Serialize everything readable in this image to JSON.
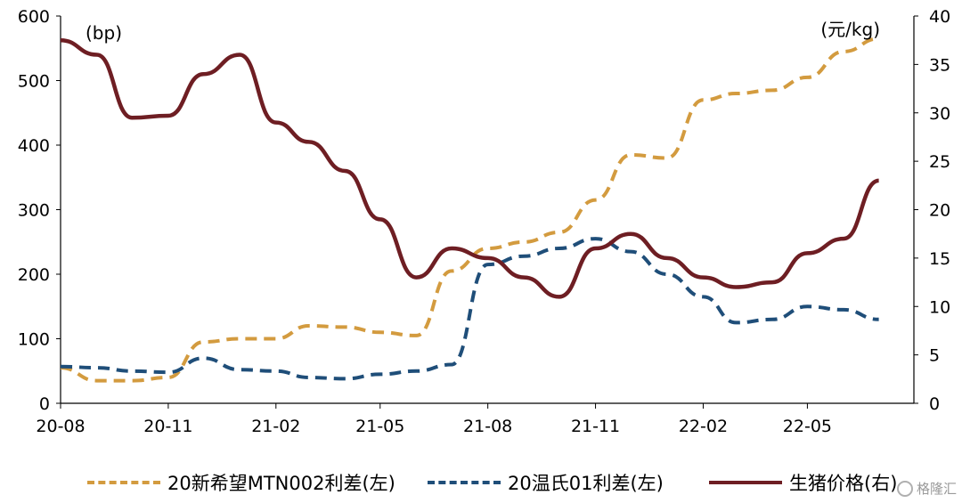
{
  "chart_data": {
    "type": "line",
    "y_left_unit": "(bp)",
    "y_right_unit": "(元/kg)",
    "ylim_left": [
      0,
      600
    ],
    "ylim_right": [
      0,
      40
    ],
    "yticks_left": [
      "0",
      "100",
      "200",
      "300",
      "400",
      "500",
      "600"
    ],
    "yticks_right": [
      "0",
      "5",
      "10",
      "15",
      "20",
      "25",
      "30",
      "35",
      "40"
    ],
    "xticks": [
      "20-08",
      "20-11",
      "21-02",
      "21-05",
      "21-08",
      "21-11",
      "22-02",
      "22-05"
    ],
    "x": [
      "2020-08",
      "2020-09",
      "2020-10",
      "2020-11",
      "2020-12",
      "2021-01",
      "2021-02",
      "2021-03",
      "2021-04",
      "2021-05",
      "2021-06",
      "2021-07",
      "2021-08",
      "2021-09",
      "2021-10",
      "2021-11",
      "2021-12",
      "2022-01",
      "2022-02",
      "2022-03",
      "2022-04",
      "2022-05",
      "2022-06",
      "2022-07"
    ],
    "grid": false,
    "legend_position": "bottom",
    "series": [
      {
        "name": "20新希望MTN002利差(左)",
        "axis": "left",
        "color": "#D39B3F",
        "style": "dashed",
        "values": [
          55,
          35,
          35,
          40,
          95,
          100,
          100,
          120,
          118,
          110,
          105,
          205,
          240,
          250,
          265,
          315,
          385,
          380,
          470,
          480,
          485,
          505,
          545,
          565
        ]
      },
      {
        "name": "20温氏01利差(左)",
        "axis": "left",
        "color": "#1F4E79",
        "style": "dashed",
        "values": [
          57,
          55,
          50,
          48,
          70,
          52,
          50,
          40,
          38,
          45,
          50,
          60,
          215,
          228,
          240,
          255,
          235,
          200,
          165,
          125,
          130,
          150,
          145,
          130
        ]
      },
      {
        "name": "生猪价格(右)",
        "axis": "right",
        "color": "#6E1E23",
        "style": "solid",
        "values": [
          37.5,
          36.0,
          29.5,
          29.7,
          34.0,
          36.0,
          29.0,
          27.0,
          24.0,
          19.0,
          13.0,
          16.0,
          15.0,
          13.0,
          11.0,
          16.0,
          17.5,
          15.0,
          13.0,
          12.0,
          12.5,
          15.5,
          17.0,
          23.0
        ]
      }
    ]
  },
  "watermark": {
    "text": "格隆汇",
    "icon": "gelonghui-logo-icon"
  }
}
